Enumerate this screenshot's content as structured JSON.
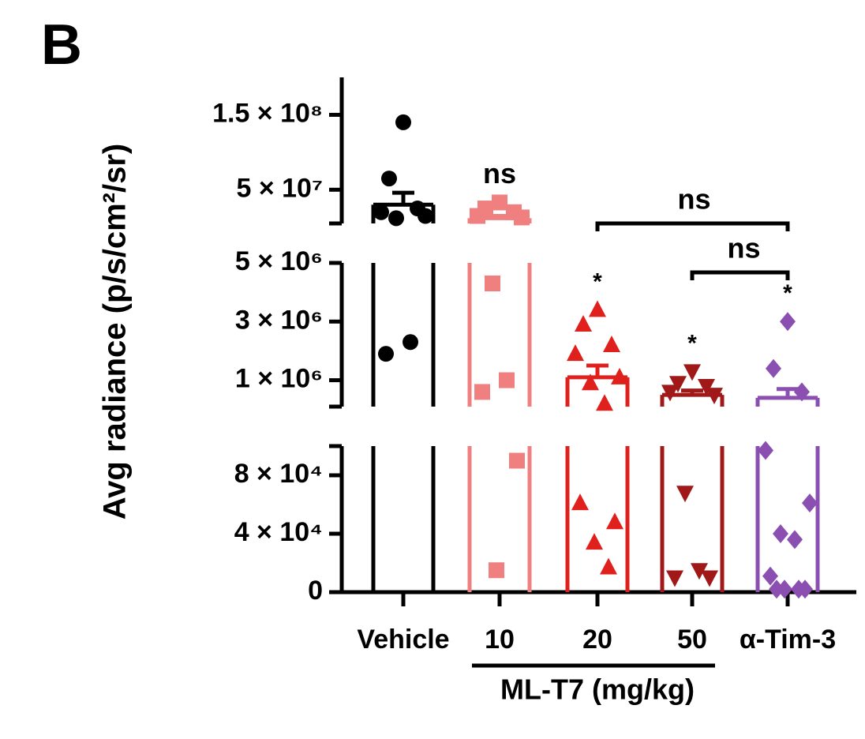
{
  "panel_label": "B",
  "chart_data": {
    "type": "scatter-bar",
    "ylabel": "Avg radiance (p/s/cm²/sr)",
    "group_label": "ML-T7 (mg/kg)",
    "y_segments": [
      {
        "ylim": [
          0,
          100000
        ],
        "yticks": [
          0,
          {
            "value": 40000,
            "label": "4 × 10⁴"
          },
          {
            "value": 80000,
            "label": "8 × 10⁴"
          }
        ]
      },
      {
        "ylim": [
          100000,
          5000000
        ],
        "yticks": [
          {
            "value": 1000000,
            "label": "1 × 10⁶"
          },
          {
            "value": 3000000,
            "label": "3 × 10⁶"
          },
          {
            "value": 5000000,
            "label": "5 × 10⁶"
          }
        ]
      },
      {
        "ylim": [
          5000000,
          200000000
        ],
        "yticks": [
          {
            "value": 50000000,
            "label": "5 × 10⁷"
          },
          {
            "value": 150000000,
            "label": "1.5 × 10⁸"
          }
        ]
      }
    ],
    "groups": [
      {
        "label": "Vehicle",
        "color": "#000000",
        "marker": "circle",
        "mean": 30000000,
        "sem": 16000000,
        "values": [
          140000000,
          65000000,
          25000000,
          20000000,
          15000000,
          12000000,
          2300000,
          1900000
        ]
      },
      {
        "label": "10",
        "color": "#f08080",
        "marker": "square",
        "mean": 12000000,
        "sem": 3000000,
        "significance": "ns",
        "values": [
          33000000,
          25000000,
          20000000,
          15000000,
          13000000,
          4300000,
          1000000,
          600000,
          90000,
          15000
        ]
      },
      {
        "label": "20",
        "color": "#e0201c",
        "marker": "triangle-up",
        "mean": 1100000,
        "sem": 400000,
        "significance": "*",
        "values": [
          3400000,
          2900000,
          2200000,
          1900000,
          1100000,
          900000,
          200000,
          61000,
          48000,
          34000,
          17000
        ]
      },
      {
        "label": "50",
        "color": "#a01818",
        "marker": "triangle-down",
        "mean": 500000,
        "sem": 150000,
        "significance": "*",
        "values": [
          1300000,
          900000,
          800000,
          600000,
          500000,
          68000,
          15000,
          10000,
          10000
        ]
      },
      {
        "label": "α-Tim-3",
        "color": "#8a4fb0",
        "marker": "diamond",
        "mean": 400000,
        "sem": 300000,
        "significance": "*",
        "values": [
          3000000,
          1400000,
          600000,
          97000,
          61000,
          40000,
          36000,
          11000,
          2000,
          2000,
          2000,
          2000
        ]
      }
    ],
    "comparisons": [
      {
        "pair": [
          "20",
          "α-Tim-3"
        ],
        "text": "ns"
      },
      {
        "pair": [
          "50",
          "α-Tim-3"
        ],
        "text": "ns"
      }
    ]
  }
}
